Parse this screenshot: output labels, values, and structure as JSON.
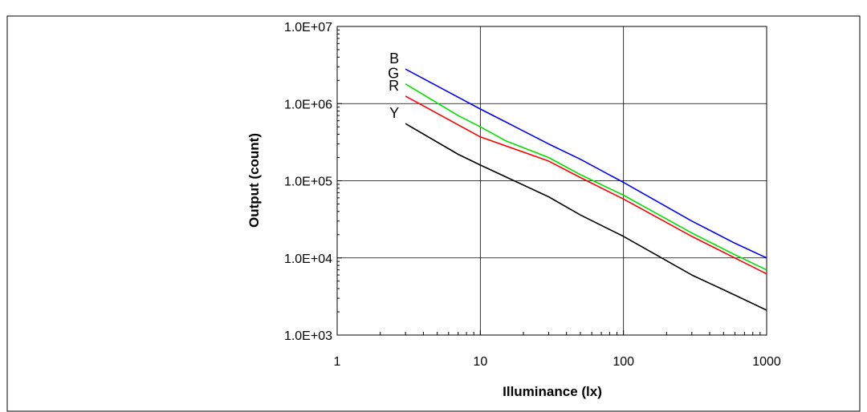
{
  "chart_data": {
    "type": "line",
    "title": "",
    "header_text": "",
    "xlabel": "Illuminance (lx)",
    "ylabel": "Output (count)",
    "x_scale": "log",
    "y_scale": "log",
    "xlim": [
      1,
      1000
    ],
    "ylim": [
      1000,
      10000000
    ],
    "x_ticks": [
      1,
      10,
      100,
      1000
    ],
    "x_tick_labels": [
      "1",
      "10",
      "100",
      "1000"
    ],
    "y_ticks": [
      1000,
      10000,
      100000,
      1000000,
      10000000
    ],
    "y_tick_labels": [
      "1.0E+03",
      "1.0E+04",
      "1.0E+05",
      "1.0E+06",
      "1.0E+07"
    ],
    "grid": true,
    "legend": "none",
    "series": [
      {
        "name": "B",
        "color": "#0000ff",
        "x": [
          3,
          10,
          15,
          30,
          50,
          100,
          300,
          600,
          1000
        ],
        "y": [
          2800000,
          850000,
          580000,
          300000,
          190000,
          95000,
          30000,
          15500,
          10000
        ]
      },
      {
        "name": "G",
        "color": "#00e000",
        "x": [
          3,
          7,
          10,
          15,
          30,
          50,
          100,
          300,
          600,
          1000
        ],
        "y": [
          1800000,
          700000,
          500000,
          330000,
          200000,
          120000,
          65000,
          21000,
          11000,
          7000
        ]
      },
      {
        "name": "R",
        "color": "#ff0000",
        "x": [
          3,
          10,
          30,
          50,
          100,
          300,
          600,
          1000
        ],
        "y": [
          1250000,
          370000,
          180000,
          110000,
          58000,
          19000,
          10000,
          6200
        ]
      },
      {
        "name": "Y",
        "color": "#000000",
        "x": [
          3,
          7,
          10,
          30,
          50,
          100,
          300,
          600,
          1000
        ],
        "y": [
          550000,
          220000,
          160000,
          62000,
          36000,
          19000,
          6000,
          3300,
          2100
        ]
      }
    ]
  }
}
